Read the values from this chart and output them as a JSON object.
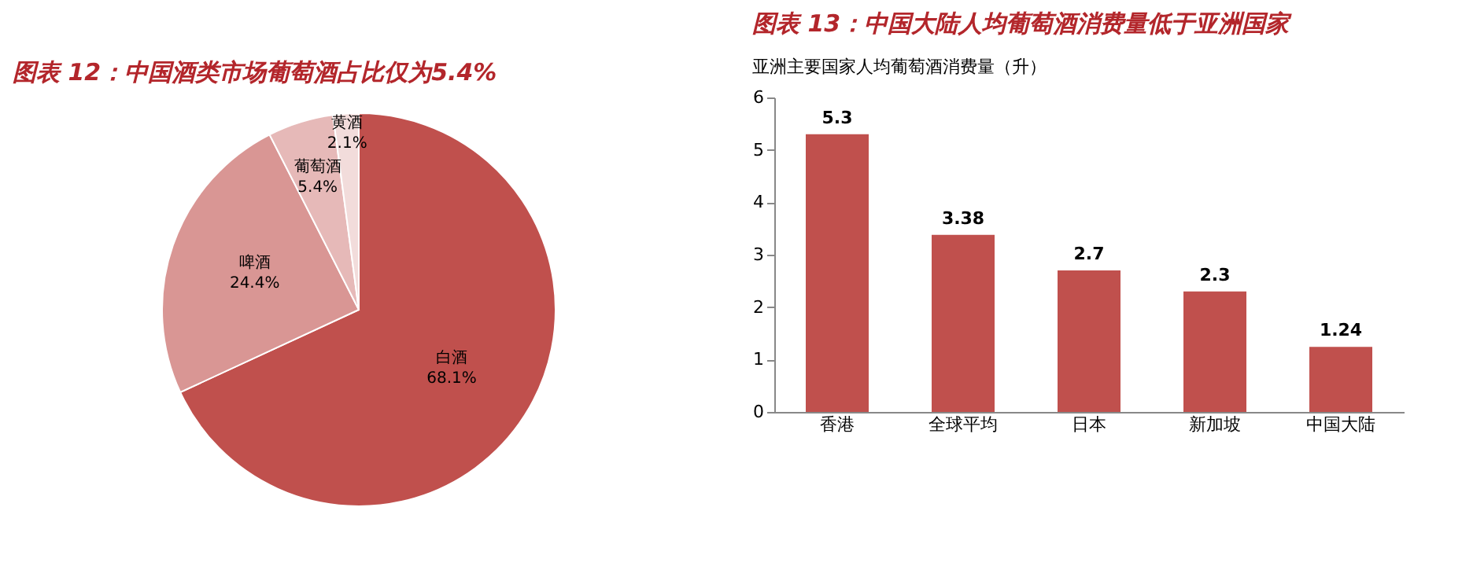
{
  "chart_data": [
    {
      "type": "pie",
      "title": "图表 12：中国酒类市场葡萄酒占比仅为5.4%",
      "categories": [
        "白酒",
        "啤酒",
        "葡萄酒",
        "黄酒"
      ],
      "values": [
        68.1,
        24.4,
        5.4,
        2.1
      ],
      "colors": [
        "#c0504d",
        "#d99694",
        "#e6b9b8",
        "#f2dcdb"
      ],
      "value_labels": [
        "68.1%",
        "24.4%",
        "5.4%",
        "2.1%"
      ],
      "legend": false
    },
    {
      "type": "bar",
      "title": "图表 13：中国大陆人均葡萄酒消费量低于亚洲国家",
      "subtitle": "亚洲主要国家人均葡萄酒消费量（升）",
      "categories": [
        "香港",
        "全球平均",
        "日本",
        "新加坡",
        "中国大陆"
      ],
      "values": [
        5.3,
        3.38,
        2.7,
        2.3,
        1.24
      ],
      "color": "#c0504d",
      "ylim": [
        0,
        6
      ],
      "yticks": [
        0,
        1,
        2,
        3,
        4,
        5,
        6
      ],
      "data_labels": true,
      "grid": false,
      "legend": false
    }
  ]
}
